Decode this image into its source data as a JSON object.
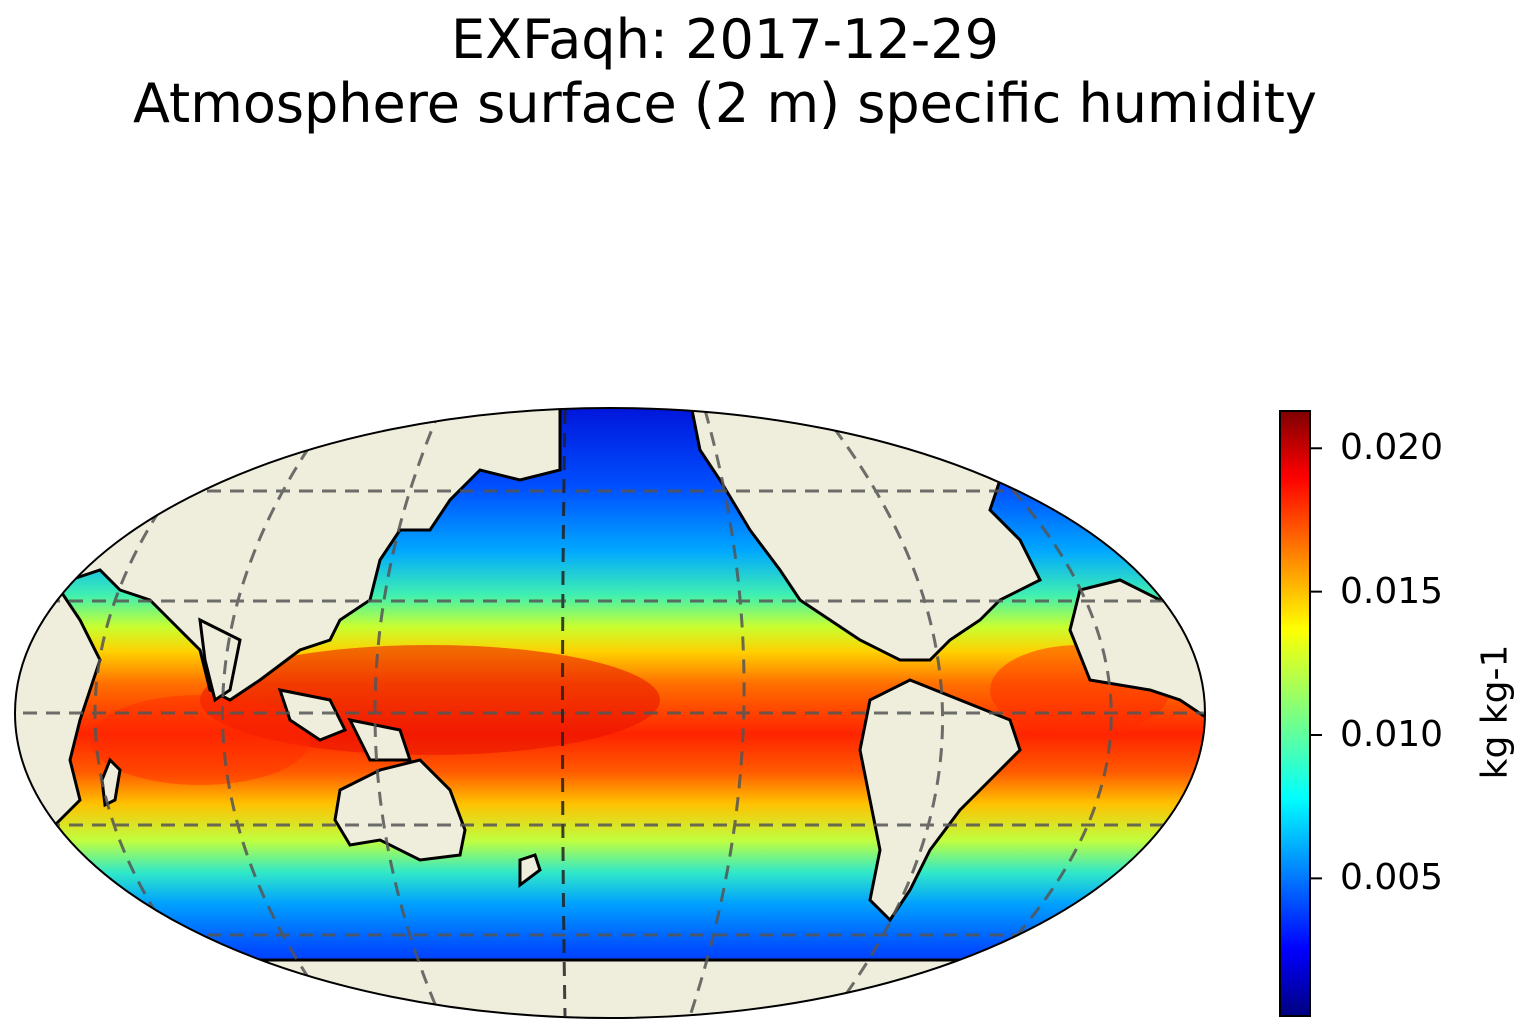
{
  "title": {
    "line1": "EXFaqh: 2017-12-29",
    "line2": "Atmosphere surface (2 m) specific humidity"
  },
  "map": {
    "projection": "Robinson",
    "central_longitude": 180,
    "variable": "EXFaqh",
    "land_color": "#efeddc",
    "coastline_color": "#000000",
    "gridline_style": "dashed",
    "colormap": "jet"
  },
  "colorbar": {
    "unit_label": "kg kg-1",
    "ticks": [
      "0.005",
      "0.010",
      "0.015",
      "0.020"
    ],
    "range": [
      0.0002,
      0.0213
    ],
    "colors": [
      "#00007f",
      "#0000ff",
      "#007fff",
      "#00ffff",
      "#7fff7f",
      "#ffff00",
      "#ff7f00",
      "#ff0000",
      "#7f0000"
    ]
  }
}
